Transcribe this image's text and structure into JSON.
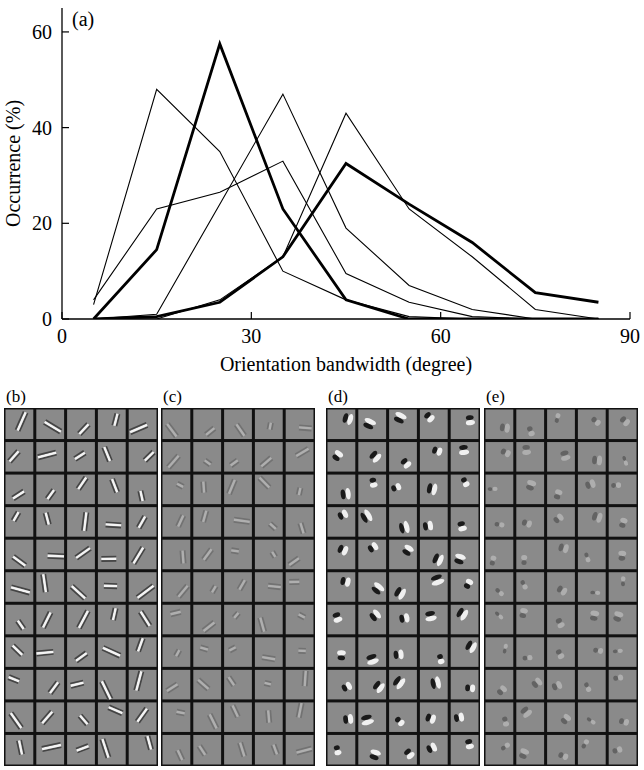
{
  "chart_data": {
    "type": "line",
    "title": "(a)",
    "x_label": "Orientation bandwidth (degree)",
    "y_label": "Occurrence (%)",
    "x": [
      5,
      15,
      25,
      35,
      45,
      55,
      65,
      75,
      85
    ],
    "xlim": [
      0,
      90
    ],
    "xticks": [
      0,
      30,
      60,
      90
    ],
    "ylim": [
      0,
      65
    ],
    "yticks": [
      0,
      20,
      40,
      60
    ],
    "grid": false,
    "series": [
      {
        "color": "#000000",
        "line_style": "bold",
        "values": [
          0,
          14.5,
          57.5,
          23,
          4,
          0,
          0,
          0,
          0
        ]
      },
      {
        "color": "#000000",
        "line_style": "bold",
        "values": [
          0,
          0.5,
          3.5,
          13,
          32.5,
          24,
          16,
          5.5,
          3.5
        ]
      },
      {
        "color": "#000000",
        "line_style": "solid",
        "values": [
          3,
          48,
          35,
          10,
          4,
          0.5,
          0,
          0,
          0
        ]
      },
      {
        "color": "#000000",
        "line_style": "solid",
        "values": [
          4,
          23,
          26.5,
          33,
          9.5,
          3.5,
          0.5,
          0,
          0
        ]
      },
      {
        "color": "#000000",
        "line_style": "solid",
        "values": [
          0,
          1,
          24,
          47,
          19,
          7,
          2,
          0,
          0
        ]
      },
      {
        "color": "#000000",
        "line_style": "solid",
        "values": [
          0,
          0,
          4,
          13,
          43,
          23,
          13,
          2,
          0
        ]
      }
    ]
  },
  "panels": [
    {
      "label": "(b)"
    },
    {
      "label": "(c)"
    },
    {
      "label": "(d)"
    },
    {
      "label": "(e)"
    }
  ]
}
